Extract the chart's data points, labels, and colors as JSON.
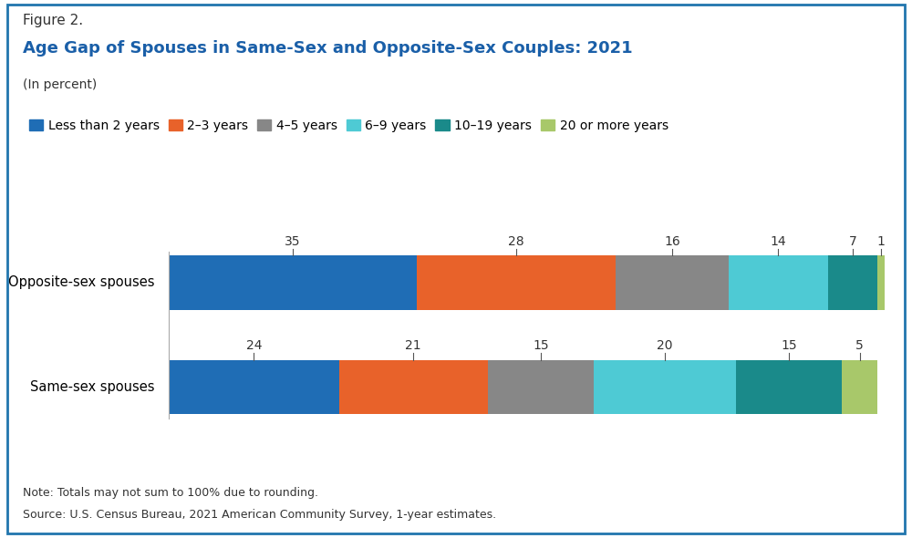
{
  "figure_label": "Figure 2.",
  "title": "Age Gap of Spouses in Same-Sex and Opposite-Sex Couples: 2021",
  "subtitle": "(In percent)",
  "categories": [
    "Opposite-sex spouses",
    "Same-sex spouses"
  ],
  "legend_labels": [
    "Less than 2 years",
    "2–3 years",
    "4–5 years",
    "6–9 years",
    "10–19 years",
    "20 or more years"
  ],
  "colors": [
    "#1f6db5",
    "#e8622a",
    "#878787",
    "#4ecad4",
    "#1a8a8a",
    "#a8c86a"
  ],
  "data": {
    "Opposite-sex spouses": [
      35,
      28,
      16,
      14,
      7,
      1
    ],
    "Same-sex spouses": [
      24,
      21,
      15,
      20,
      15,
      5
    ]
  },
  "note_line1": "Note: Totals may not sum to 100% due to rounding.",
  "note_line2": "Source: U.S. Census Bureau, 2021 American Community Survey, 1-year estimates.",
  "border_color": "#2176ae",
  "title_color": "#1a5fa8",
  "figure_label_color": "#333333",
  "background_color": "#ffffff",
  "bar_height": 0.52,
  "label_fontsize": 10,
  "ylabel_fontsize": 10.5,
  "note_fontsize": 9,
  "legend_fontsize": 10
}
